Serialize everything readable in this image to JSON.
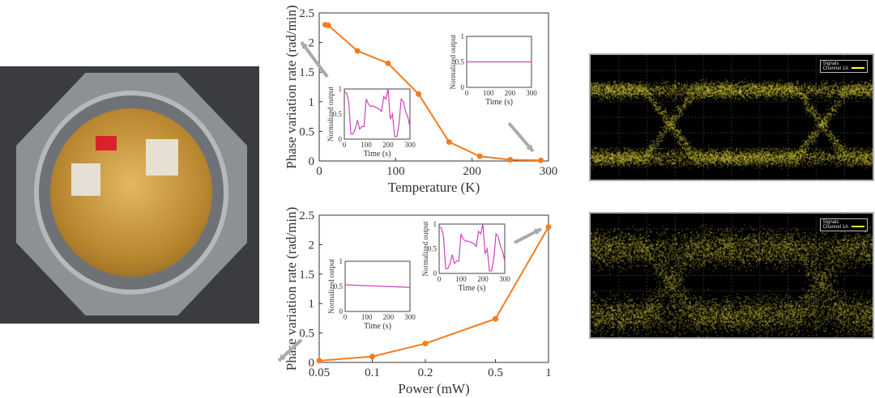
{
  "chart_data": [
    {
      "type": "line",
      "xlabel": "Temperature (K)",
      "ylabel": "Phase variation rate (rad/min)",
      "xlim": [
        0,
        300
      ],
      "ylim": [
        0,
        2.5
      ],
      "xticks": [
        "0",
        "100",
        "200",
        "300"
      ],
      "yticks": [
        "0",
        "0.5",
        "1",
        "1.5",
        "2",
        "2.5"
      ],
      "x": [
        8,
        12,
        50,
        90,
        130,
        170,
        210,
        250,
        290
      ],
      "y": [
        2.3,
        2.29,
        1.86,
        1.65,
        1.13,
        0.32,
        0.08,
        0.02,
        0.01
      ],
      "color": "#f47c20",
      "insets": [
        {
          "xlabel": "Time (s)",
          "ylabel": "Normalized output",
          "xticks": [
            "0",
            "100",
            "200",
            "300"
          ],
          "yticks": [
            "0",
            "0.5",
            "1"
          ],
          "type": "noisy"
        },
        {
          "xlabel": "Time (s)",
          "ylabel": "Normalized output",
          "xticks": [
            "0",
            "100",
            "200",
            "300"
          ],
          "yticks": [
            "0",
            "0.5",
            "1"
          ],
          "type": "flat",
          "start": 0.5,
          "end": 0.5
        }
      ]
    },
    {
      "type": "line",
      "xlabel": "Power (mW)",
      "ylabel": "Phase variation rate (rad/min)",
      "xscale": "log",
      "xlim": [
        0.05,
        1
      ],
      "ylim": [
        0,
        2.5
      ],
      "xticks": [
        "0.05",
        "0.1",
        "0.2",
        "0.5",
        "1"
      ],
      "yticks": [
        "0",
        "0.5",
        "1",
        "1.5",
        "2",
        "2.5"
      ],
      "x": [
        0.05,
        0.1,
        0.2,
        0.5,
        1
      ],
      "y": [
        0.03,
        0.1,
        0.32,
        0.74,
        2.3
      ],
      "color": "#f47c20",
      "insets": [
        {
          "xlabel": "Time (s)",
          "ylabel": "Normalized output",
          "xticks": [
            "0",
            "100",
            "200",
            "300"
          ],
          "yticks": [
            "0",
            "0.5",
            "1"
          ],
          "type": "flat",
          "start": 0.53,
          "end": 0.48
        },
        {
          "xlabel": "Time (s)",
          "ylabel": "Normalized output",
          "xticks": [
            "0",
            "100",
            "200",
            "300"
          ],
          "yticks": [
            "0",
            "0.5",
            "1"
          ],
          "type": "noisy"
        }
      ]
    }
  ],
  "noisy_trace": [
    0.95,
    0.92,
    0.75,
    0.1,
    0.1,
    0.2,
    0.38,
    0.2,
    0.25,
    0.25,
    0.8,
    0.7,
    0.65,
    0.66,
    0.64,
    0.62,
    0.6,
    0.55,
    0.85,
    0.8,
    1.0,
    0.4,
    0.5,
    0.05,
    0.05,
    0.3,
    0.8,
    0.75,
    0.55,
    0.45,
    0.25
  ],
  "inset_color": "#cc44bb",
  "eye_diagrams": [
    {
      "legend_title": "Signals",
      "channel": "Channel 1A"
    },
    {
      "legend_title": "Signals",
      "channel": "Channel 1A"
    }
  ]
}
